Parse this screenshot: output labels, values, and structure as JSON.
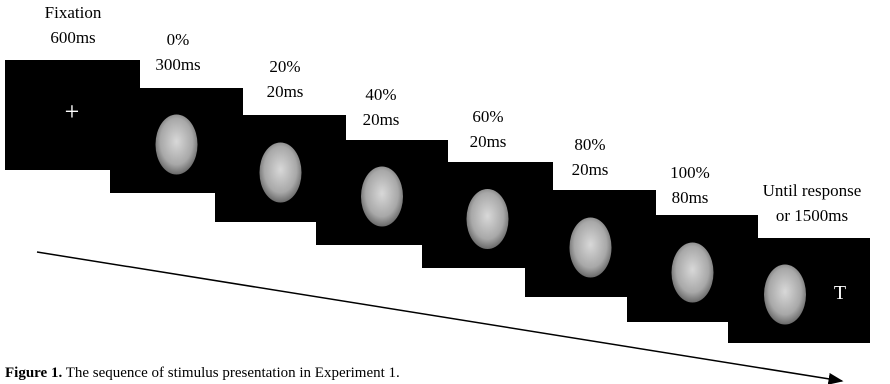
{
  "frames": [
    {
      "label": [
        "Fixation",
        "600ms"
      ],
      "content": "+"
    },
    {
      "label": [
        "0%",
        "300ms"
      ]
    },
    {
      "label": [
        "20%",
        "20ms"
      ]
    },
    {
      "label": [
        "40%",
        "20ms"
      ]
    },
    {
      "label": [
        "60%",
        "20ms"
      ]
    },
    {
      "label": [
        "80%",
        "20ms"
      ]
    },
    {
      "label": [
        "100%",
        "80ms"
      ]
    },
    {
      "label": [
        "Until response",
        "or 1500ms"
      ],
      "content": "T"
    }
  ],
  "caption": {
    "label": "Figure 1.",
    "text": "The sequence of stimulus presentation in Experiment 1."
  }
}
